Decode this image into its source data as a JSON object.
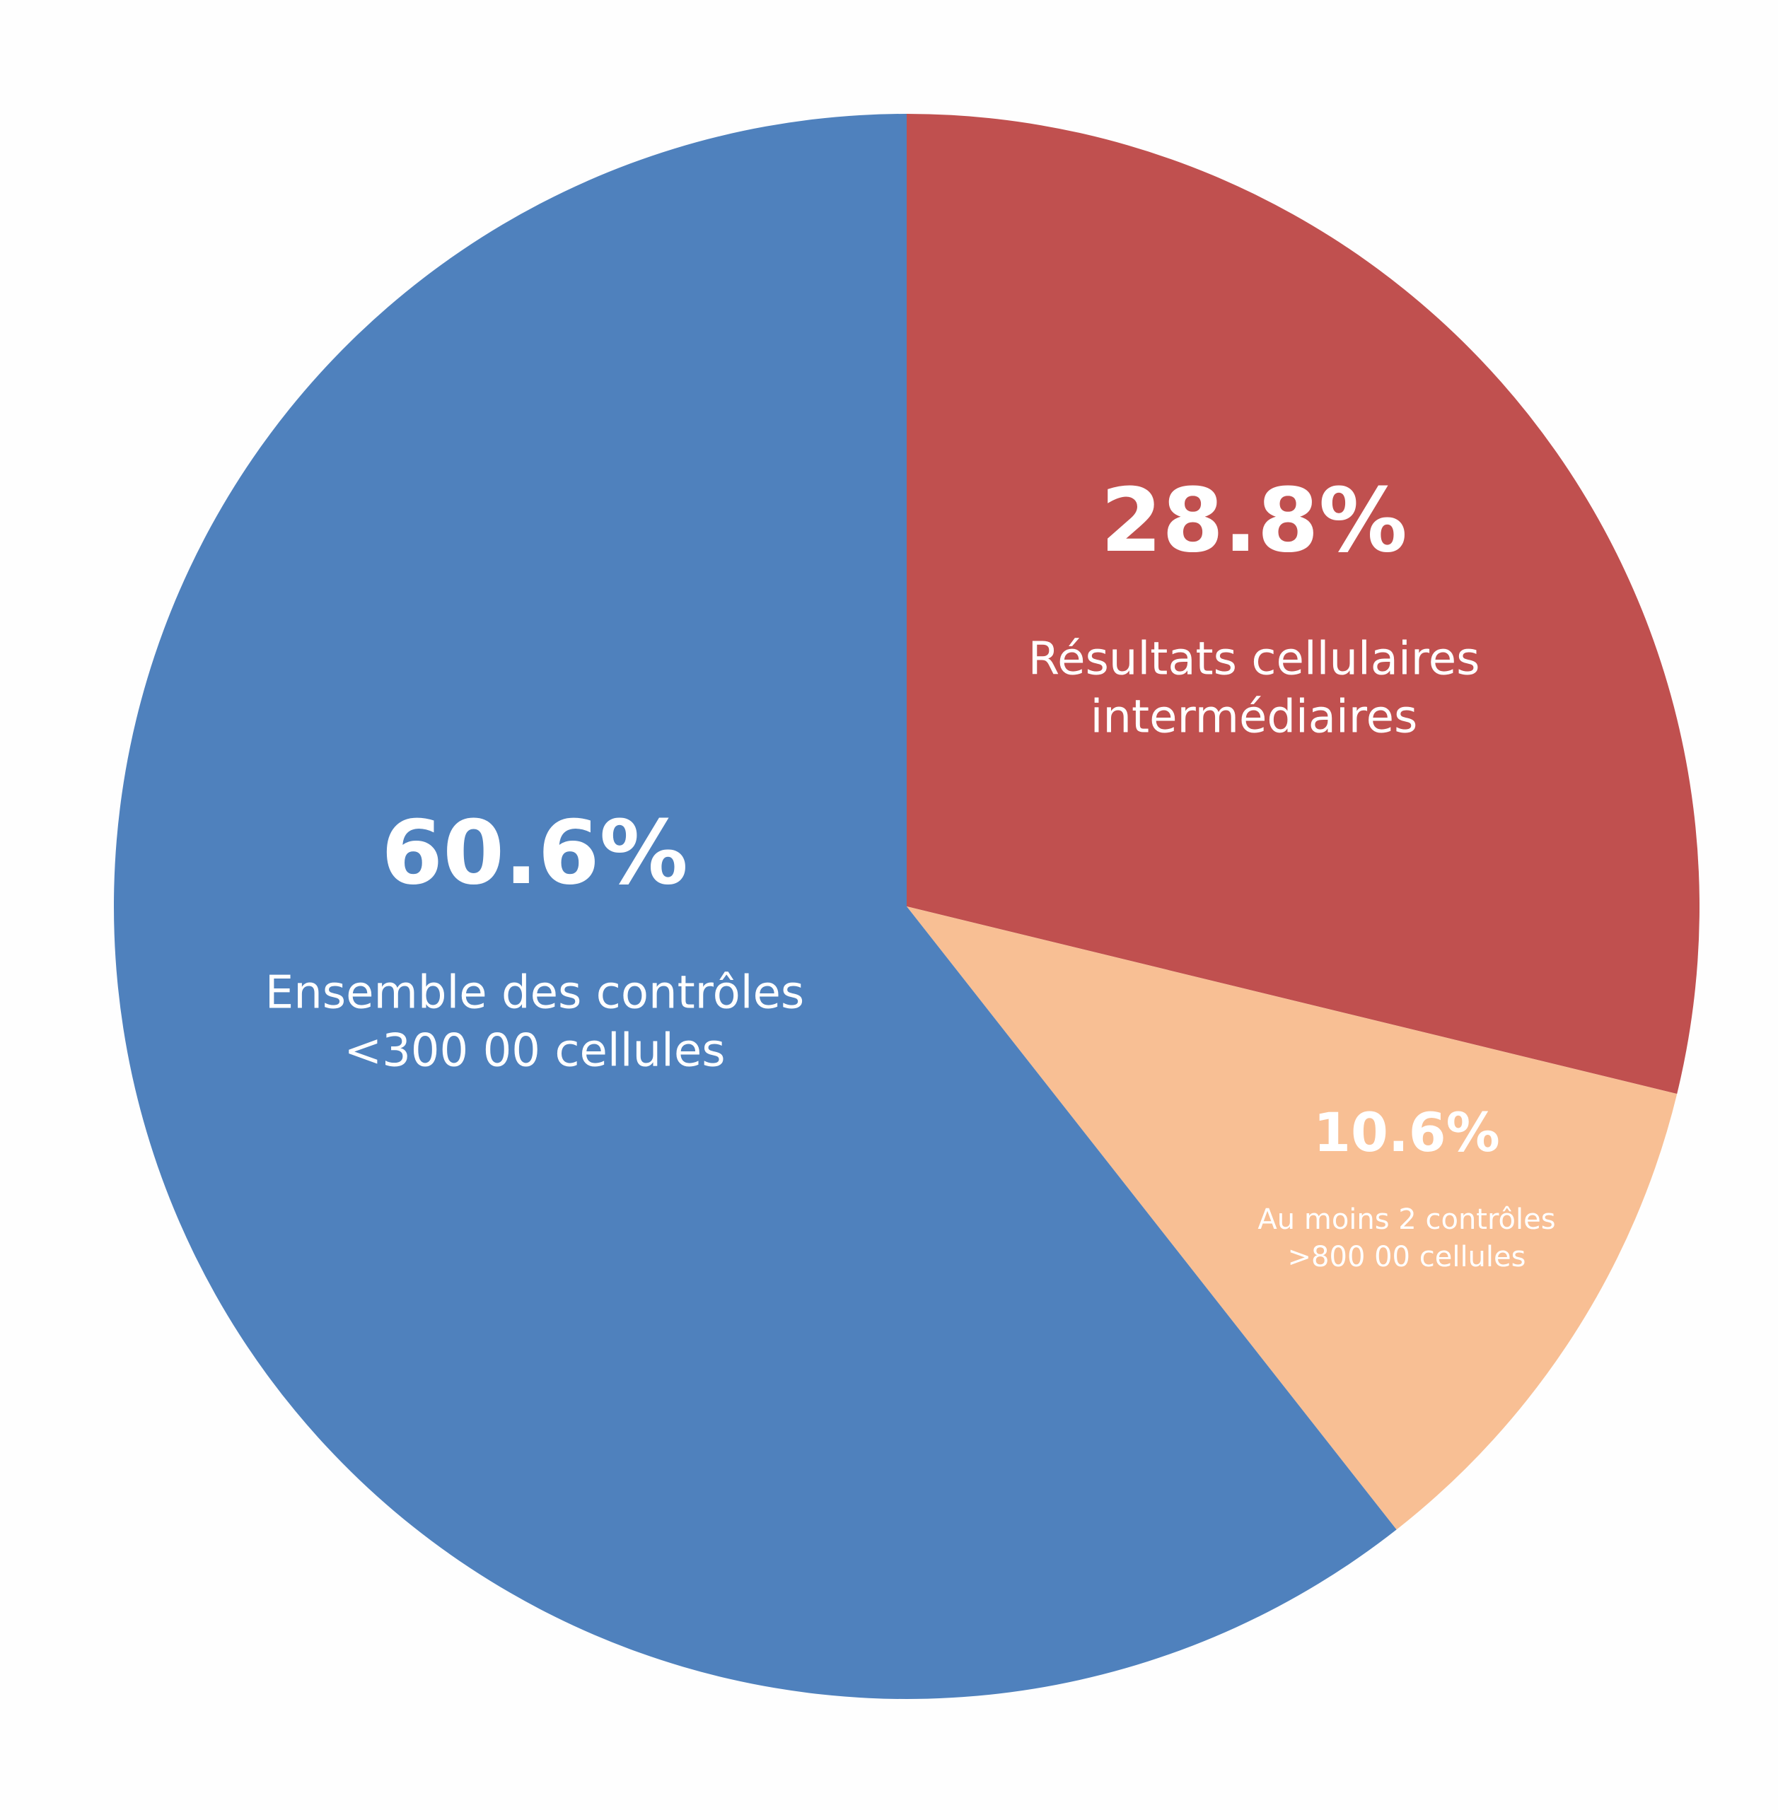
{
  "chart_data": {
    "type": "pie",
    "categories": [
      [
        "Résultats cellulaires",
        "intermédiaires"
      ],
      [
        "Au moins 2 contrôles",
        ">800 00 cellules"
      ],
      [
        "Ensemble des contrôles",
        "<300 00 cellules"
      ]
    ],
    "values": [
      28.8,
      10.6,
      60.6
    ],
    "value_labels": [
      "28.8%",
      "10.6%",
      "60.6%"
    ],
    "colors": [
      "#c0504f",
      "#f8bf94",
      "#4f81bd"
    ]
  }
}
